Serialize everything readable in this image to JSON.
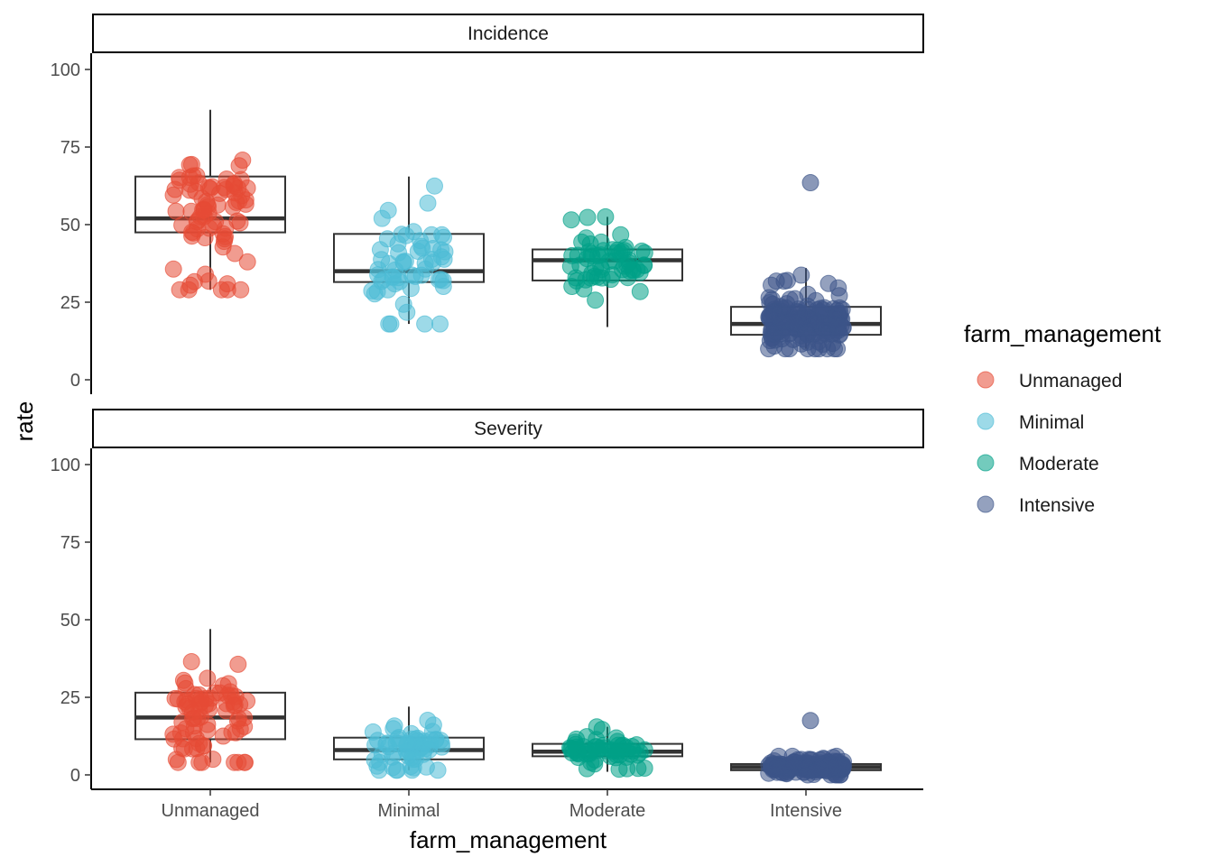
{
  "chart_data": {
    "type": "box+jitter",
    "xlabel": "farm_management",
    "ylabel": "rate",
    "categories": [
      "Unmanaged",
      "Minimal",
      "Moderate",
      "Intensive"
    ],
    "ylim": [
      0,
      100
    ],
    "yticks": [
      0,
      25,
      50,
      75,
      100
    ],
    "grid": false,
    "legend": {
      "title": "farm_management",
      "placement": "right",
      "entries": [
        "Unmanaged",
        "Minimal",
        "Moderate",
        "Intensive"
      ]
    },
    "colors": {
      "Unmanaged": "#E64B35",
      "Minimal": "#4DBBD5",
      "Moderate": "#00A087",
      "Intensive": "#3C5488"
    },
    "point_counts": {
      "Unmanaged": 80,
      "Minimal": 60,
      "Moderate": 60,
      "Intensive": 200
    },
    "panels": [
      {
        "label": "Incidence",
        "boxes": [
          {
            "category": "Unmanaged",
            "min": 29,
            "q1": 47.5,
            "median": 52,
            "q3": 65.5,
            "max": 87
          },
          {
            "category": "Minimal",
            "min": 18,
            "q1": 31.5,
            "median": 35,
            "q3": 47,
            "max": 65.5
          },
          {
            "category": "Moderate",
            "min": 17,
            "q1": 32,
            "median": 38.5,
            "q3": 42,
            "max": 52.5
          },
          {
            "category": "Intensive",
            "min": 10,
            "q1": 14.5,
            "median": 18,
            "q3": 23.5,
            "max": 36
          }
        ],
        "outliers": [
          {
            "category": "Intensive",
            "value": 63.5
          }
        ]
      },
      {
        "label": "Severity",
        "boxes": [
          {
            "category": "Unmanaged",
            "min": 4,
            "q1": 11.5,
            "median": 18.5,
            "q3": 26.5,
            "max": 47
          },
          {
            "category": "Minimal",
            "min": 1.5,
            "q1": 5,
            "median": 8,
            "q3": 12,
            "max": 22
          },
          {
            "category": "Moderate",
            "min": 1,
            "q1": 6,
            "median": 7.5,
            "q3": 10,
            "max": 15.5
          },
          {
            "category": "Intensive",
            "min": 0,
            "q1": 1.5,
            "median": 2.5,
            "q3": 3.5,
            "max": 6
          }
        ],
        "outliers": [
          {
            "category": "Intensive",
            "value": 17.5
          }
        ]
      }
    ]
  }
}
